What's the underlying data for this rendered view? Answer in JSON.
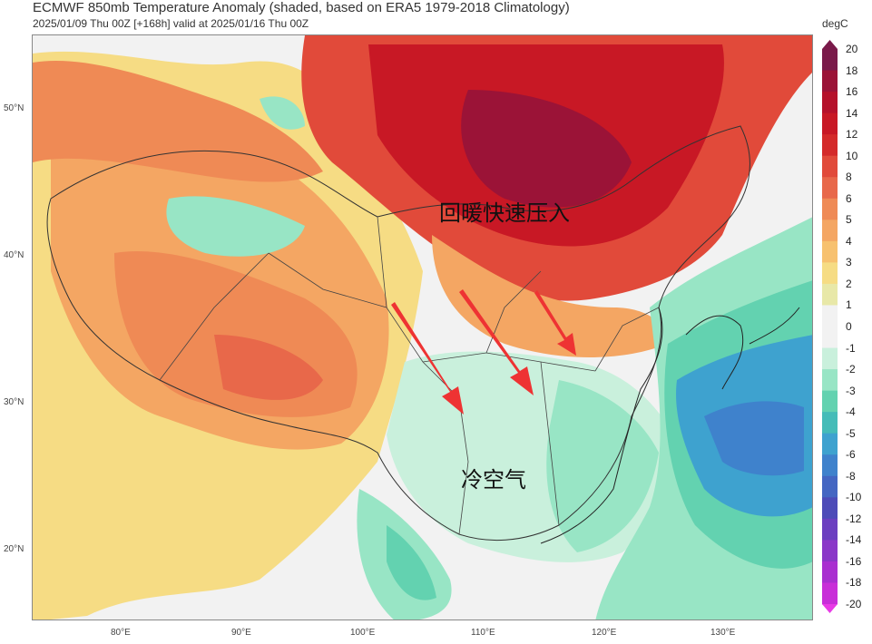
{
  "title": "ECMWF 850mb Temperature Anomaly (shaded, based on ERA5 1979-2018 Climatology)",
  "subtitle": "2025/01/09 Thu 00Z [+168h] valid at 2025/01/16 Thu 00Z",
  "colorbar": {
    "unit": "degC",
    "levels": [
      "20",
      "18",
      "16",
      "14",
      "12",
      "10",
      "8",
      "6",
      "5",
      "4",
      "3",
      "2",
      "1",
      "0",
      "-1",
      "-2",
      "-3",
      "-4",
      "-5",
      "-6",
      "-8",
      "-10",
      "-12",
      "-14",
      "-16",
      "-18",
      "-20"
    ],
    "colors": [
      "#7a1a4a",
      "#9b1337",
      "#b5112b",
      "#c81825",
      "#d42a2a",
      "#e14a3a",
      "#e8684a",
      "#ef8a55",
      "#f4a663",
      "#f7c16f",
      "#f6dc84",
      "#e8e8a8",
      "#f2f2f2",
      "#f2f2f2",
      "#c9f0dc",
      "#98e5c5",
      "#63d2b0",
      "#45bcb8",
      "#3ea2cf",
      "#3f82cc",
      "#4466c2",
      "#4d4bb8",
      "#6b3fc0",
      "#8a37c8",
      "#a92fd0",
      "#c82ed8",
      "#e83ae6"
    ]
  },
  "latitude_labels": [
    "50°N",
    "40°N",
    "30°N",
    "20°N"
  ],
  "longitude_labels": [
    "80°E",
    "90°E",
    "100°E",
    "110°E",
    "120°E",
    "130°E"
  ],
  "annotations": {
    "warm_text": "回暖快速压入",
    "cold_text": "冷空气"
  },
  "colors": {
    "arrow": "#ee3333"
  }
}
